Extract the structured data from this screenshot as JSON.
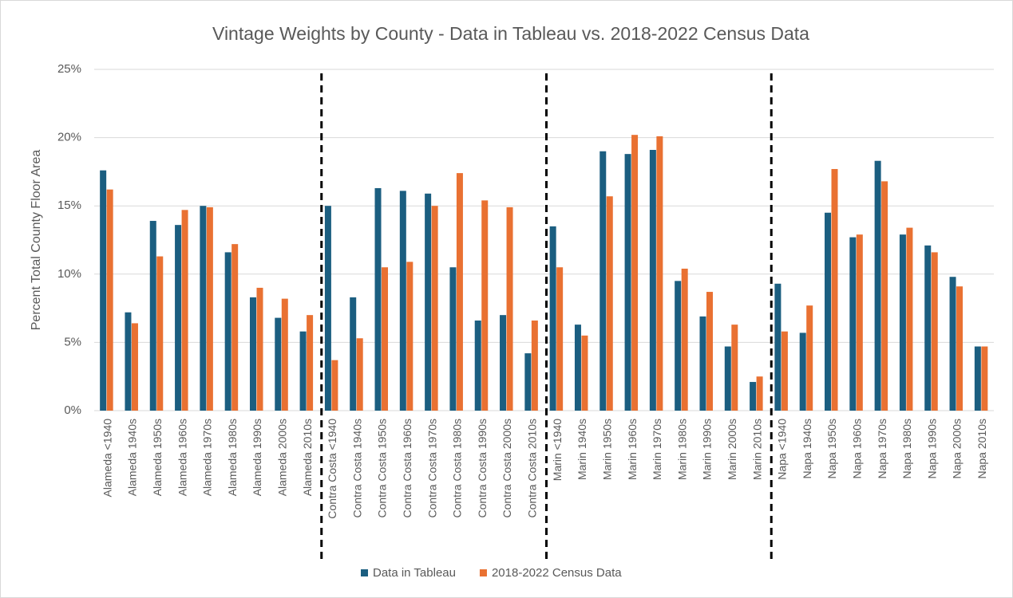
{
  "chart_data": {
    "type": "bar",
    "title": "Vintage Weights by County - Data in Tableau vs. 2018-2022 Census Data",
    "y_label": "Percent Total County Floor Area",
    "categories": [
      "Alameda <1940",
      "Alameda 1940s",
      "Alameda 1950s",
      "Alameda 1960s",
      "Alameda 1970s",
      "Alameda 1980s",
      "Alameda 1990s",
      "Alameda 2000s",
      "Alameda 2010s",
      "Contra Costa <1940",
      "Contra Costa 1940s",
      "Contra Costa 1950s",
      "Contra Costa 1960s",
      "Contra Costa 1970s",
      "Contra Costa 1980s",
      "Contra Costa 1990s",
      "Contra Costa 2000s",
      "Contra Costa 2010s",
      "Marin <1940",
      "Marin 1940s",
      "Marin 1950s",
      "Marin 1960s",
      "Marin 1970s",
      "Marin 1980s",
      "Marin 1990s",
      "Marin 2000s",
      "Marin 2010s",
      "Napa <1940",
      "Napa 1940s",
      "Napa 1950s",
      "Napa 1960s",
      "Napa 1970s",
      "Napa 1980s",
      "Napa 1990s",
      "Napa 2000s",
      "Napa 2010s"
    ],
    "series": [
      {
        "name": "Data in Tableau",
        "color": "#1b5e80",
        "values": [
          17.6,
          7.2,
          13.9,
          13.6,
          15.0,
          11.6,
          8.3,
          6.8,
          5.8,
          15.0,
          8.3,
          16.3,
          16.1,
          15.9,
          10.5,
          6.6,
          7.0,
          4.2,
          13.5,
          6.3,
          19.0,
          18.8,
          19.1,
          9.5,
          6.9,
          4.7,
          2.1,
          9.3,
          5.7,
          14.5,
          12.7,
          18.3,
          12.9,
          12.1,
          9.8,
          4.7
        ]
      },
      {
        "name": "2018-2022 Census Data",
        "color": "#e97132",
        "values": [
          16.2,
          6.4,
          11.3,
          14.7,
          14.9,
          12.2,
          9.0,
          8.2,
          7.0,
          3.7,
          5.3,
          10.5,
          10.9,
          15.0,
          17.4,
          15.4,
          14.9,
          6.6,
          10.5,
          5.5,
          15.7,
          20.2,
          20.1,
          10.4,
          8.7,
          6.3,
          2.5,
          5.8,
          7.7,
          17.7,
          12.9,
          16.8,
          13.4,
          11.6,
          9.1,
          4.7
        ]
      }
    ],
    "ylim": [
      0,
      25
    ],
    "yticks": [
      {
        "value": 0,
        "label": "0%"
      },
      {
        "value": 5,
        "label": "5%"
      },
      {
        "value": 10,
        "label": "10%"
      },
      {
        "value": 15,
        "label": "15%"
      },
      {
        "value": 20,
        "label": "20%"
      },
      {
        "value": 25,
        "label": "25%"
      }
    ],
    "grid": true,
    "legend": "bottom"
  }
}
